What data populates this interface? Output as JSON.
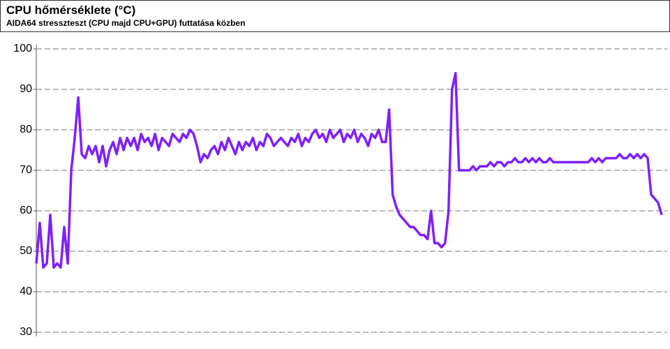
{
  "chart_data": {
    "type": "line",
    "title": "CPU hőmérséklete (°C)",
    "subtitle": "AIDA64 stresszteszt (CPU majd CPU+GPU) futtatása közben",
    "ylim": [
      30,
      100
    ],
    "yticks": [
      30,
      40,
      50,
      60,
      70,
      80,
      90,
      100
    ],
    "grid": true,
    "series": [
      {
        "color": "#7f1fff",
        "values": [
          47,
          57,
          46,
          47,
          59,
          46,
          47,
          46,
          56,
          47,
          70,
          78,
          88,
          74,
          73,
          76,
          74,
          76,
          72,
          76,
          71,
          75,
          77,
          74,
          78,
          75,
          78,
          76,
          78,
          75,
          79,
          77,
          78,
          76,
          79,
          75,
          78,
          77,
          76,
          79,
          78,
          77,
          79,
          78,
          80,
          79,
          76,
          72,
          74,
          73,
          75,
          76,
          74,
          77,
          75,
          78,
          76,
          74,
          77,
          75,
          77,
          76,
          78,
          75,
          77,
          76,
          79,
          78,
          76,
          77,
          78,
          77,
          76,
          78,
          77,
          79,
          76,
          78,
          77,
          79,
          80,
          78,
          79,
          77,
          80,
          78,
          79,
          80,
          77,
          79,
          78,
          80,
          77,
          79,
          78,
          76,
          79,
          78,
          80,
          77,
          77,
          85,
          64,
          61,
          59,
          58,
          57,
          56,
          56,
          55,
          54,
          54,
          53,
          60,
          52,
          52,
          51,
          52,
          60,
          90,
          94,
          70,
          70,
          70,
          70,
          71,
          70,
          71,
          71,
          71,
          72,
          71,
          72,
          72,
          71,
          72,
          72,
          73,
          72,
          72,
          73,
          72,
          73,
          72,
          73,
          72,
          72,
          73,
          72,
          72,
          72,
          72,
          72,
          72,
          72,
          72,
          72,
          72,
          72,
          73,
          72,
          73,
          72,
          73,
          73,
          73,
          73,
          74,
          73,
          73,
          74,
          73,
          74,
          73,
          74,
          73,
          64,
          63,
          62,
          59
        ]
      }
    ]
  }
}
